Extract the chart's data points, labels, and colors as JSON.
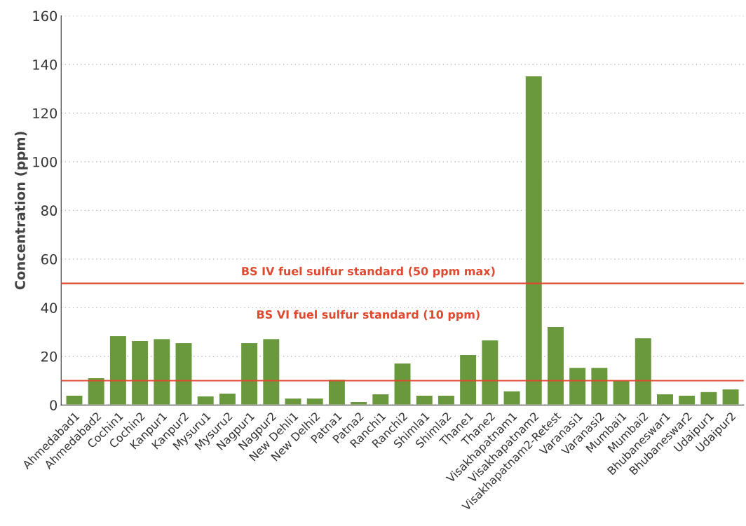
{
  "chart_data": {
    "type": "bar",
    "ylabel": "Concentration (ppm)",
    "categories": [
      "Ahmedabad1",
      "Ahmedabad2",
      "Cochin1",
      "Cochin2",
      "Kanpur1",
      "Kanpur2",
      "Mysuru1",
      "Mysuru2",
      "Nagpur1",
      "Nagpur2",
      "New Dehli1",
      "New Delhi2",
      "Patna1",
      "Patna2",
      "Ranchi1",
      "Ranchi2",
      "Shimla1",
      "Shimla2",
      "Thane1",
      "Thane2",
      "Visakhapatnam1",
      "Visakhapatnam2",
      "Visakhapatnam2-Retest",
      "Varanasi1",
      "Varanasi2",
      "Mumbai1",
      "Mumbai2",
      "Bhubaneswar1",
      "Bhubaneswar2",
      "Udaipur1",
      "Udaipur2"
    ],
    "values": [
      4.0,
      11.2,
      28.5,
      26.5,
      27.3,
      25.6,
      3.7,
      4.9,
      25.6,
      27.3,
      2.9,
      2.9,
      10.6,
      1.4,
      4.6,
      17.3,
      4.0,
      4.0,
      20.7,
      26.8,
      5.8,
      135.3,
      32.2,
      15.5,
      15.5,
      10.1,
      27.6,
      4.6,
      4.0,
      5.5,
      6.6
    ],
    "color": "#6a983c",
    "ylim": [
      0,
      160
    ],
    "yticks": [
      0,
      20,
      40,
      60,
      80,
      100,
      120,
      140,
      160
    ],
    "grid": "y",
    "ref_lines": [
      {
        "axis": "y",
        "value": 50,
        "label": "BS IV fuel sulfur standard (50 ppm max)",
        "color": "#e0492f"
      },
      {
        "axis": "y",
        "value": 10,
        "label": "BS VI fuel sulfur standard (10 ppm)",
        "color": "#e0492f"
      }
    ]
  }
}
